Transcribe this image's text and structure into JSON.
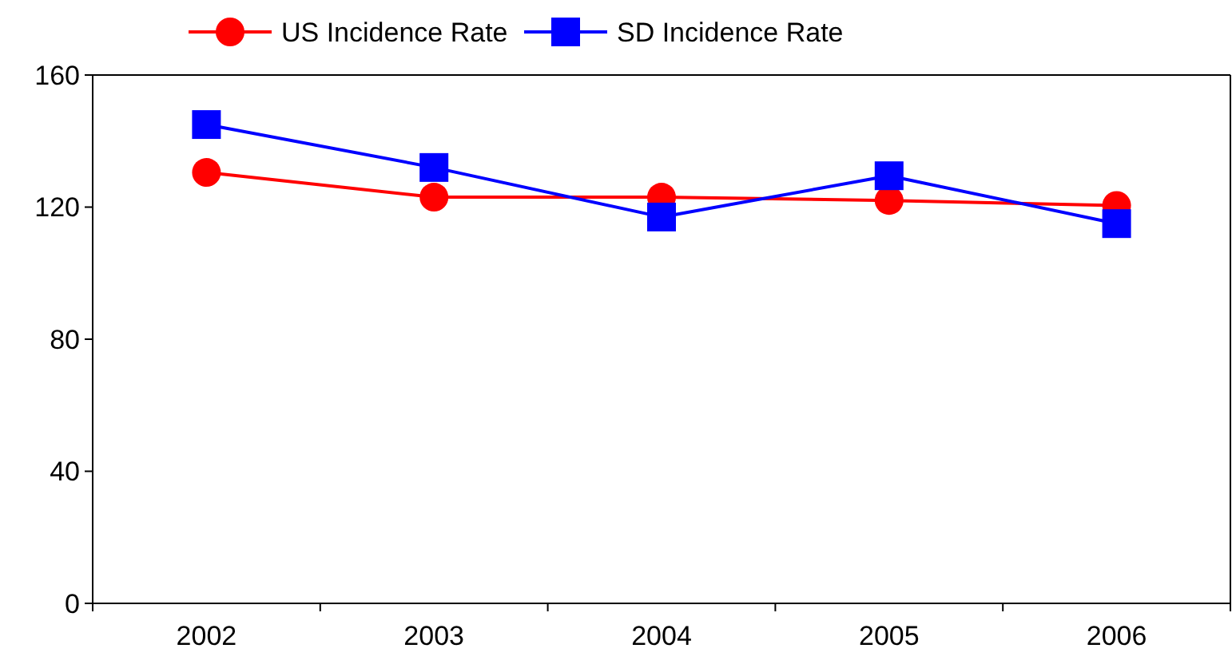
{
  "chart_data": {
    "type": "line",
    "categories": [
      "2002",
      "2003",
      "2004",
      "2005",
      "2006"
    ],
    "series": [
      {
        "name": "US Incidence Rate",
        "color": "#ff0000",
        "marker": "circle",
        "values": [
          130.5,
          123,
          123,
          122,
          120.5
        ]
      },
      {
        "name": "SD Incidence Rate",
        "color": "#0000ff",
        "marker": "square",
        "values": [
          145,
          132,
          117,
          129.5,
          115
        ]
      }
    ],
    "ylim": [
      0,
      160
    ],
    "yticks": [
      0,
      40,
      80,
      120,
      160
    ],
    "grid": false,
    "legend": "top"
  }
}
